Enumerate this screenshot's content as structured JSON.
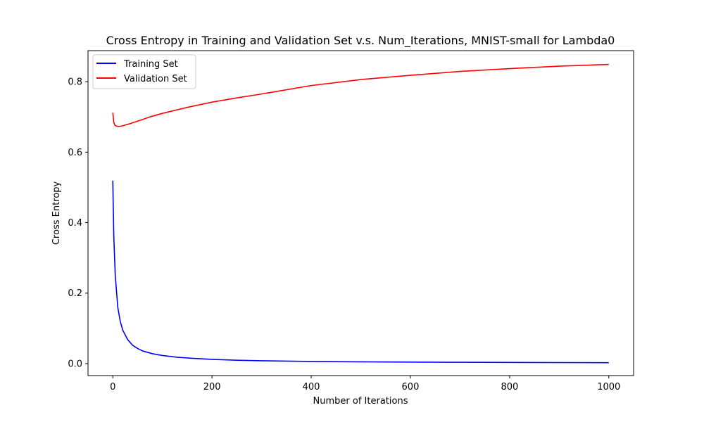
{
  "chart_data": {
    "type": "line",
    "title": "Cross Entropy in Training and Validation Set v.s. Num_Iterations, MNIST-small for Lambda0",
    "xlabel": "Number of Iterations",
    "ylabel": "Cross Entropy",
    "xlim": [
      -50,
      1050
    ],
    "ylim": [
      -0.034,
      0.888
    ],
    "xticks": [
      0,
      200,
      400,
      600,
      800,
      1000
    ],
    "xtick_labels": [
      "0",
      "200",
      "400",
      "600",
      "800",
      "1000"
    ],
    "yticks": [
      0.0,
      0.2,
      0.4,
      0.6,
      0.8
    ],
    "ytick_labels": [
      "0.0",
      "0.2",
      "0.4",
      "0.6",
      "0.8"
    ],
    "grid": false,
    "legend": "top-left",
    "series": [
      {
        "name": "Training Set",
        "color": "#0000ff",
        "x": [
          0,
          2,
          5,
          10,
          15,
          20,
          30,
          40,
          50,
          60,
          80,
          100,
          130,
          160,
          200,
          250,
          300,
          400,
          500,
          600,
          700,
          800,
          900,
          1000
        ],
        "y": [
          0.519,
          0.36,
          0.25,
          0.16,
          0.12,
          0.095,
          0.068,
          0.052,
          0.043,
          0.036,
          0.028,
          0.023,
          0.018,
          0.015,
          0.012,
          0.0095,
          0.008,
          0.006,
          0.005,
          0.0043,
          0.0037,
          0.0032,
          0.0029,
          0.0026
        ]
      },
      {
        "name": "Validation Set",
        "color": "#ff0000",
        "x": [
          0,
          2,
          4,
          7,
          10,
          13,
          18,
          25,
          35,
          50,
          75,
          100,
          150,
          200,
          250,
          300,
          400,
          500,
          600,
          700,
          800,
          900,
          1000
        ],
        "y": [
          0.712,
          0.685,
          0.677,
          0.674,
          0.673,
          0.673,
          0.674,
          0.677,
          0.681,
          0.688,
          0.7,
          0.71,
          0.727,
          0.742,
          0.754,
          0.765,
          0.789,
          0.806,
          0.818,
          0.829,
          0.837,
          0.844,
          0.849
        ]
      }
    ]
  }
}
